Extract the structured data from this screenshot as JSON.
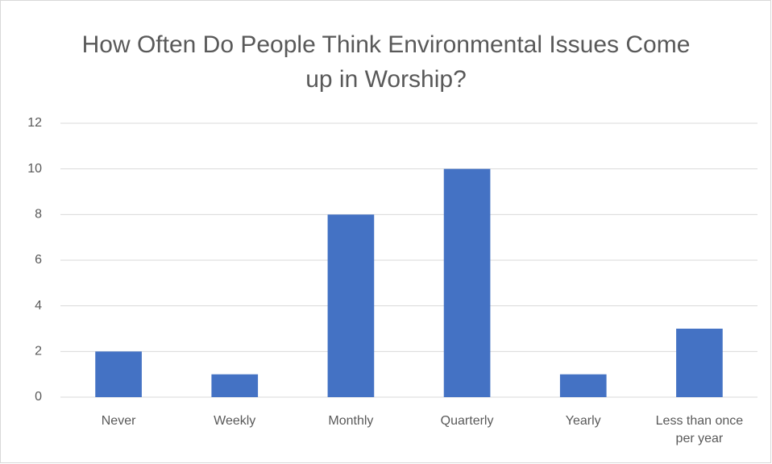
{
  "chart_data": {
    "type": "bar",
    "title": "How Often Do People Think Environmental Issues Come up in Worship?",
    "categories": [
      "Never",
      "Weekly",
      "Monthly",
      "Quarterly",
      "Yearly",
      "Less than once per year"
    ],
    "values": [
      2,
      1,
      8,
      10,
      1,
      3
    ],
    "color": "#4472c4",
    "ylim": [
      0,
      12
    ],
    "yticks": [
      0,
      2,
      4,
      6,
      8,
      10,
      12
    ],
    "grid": true
  }
}
